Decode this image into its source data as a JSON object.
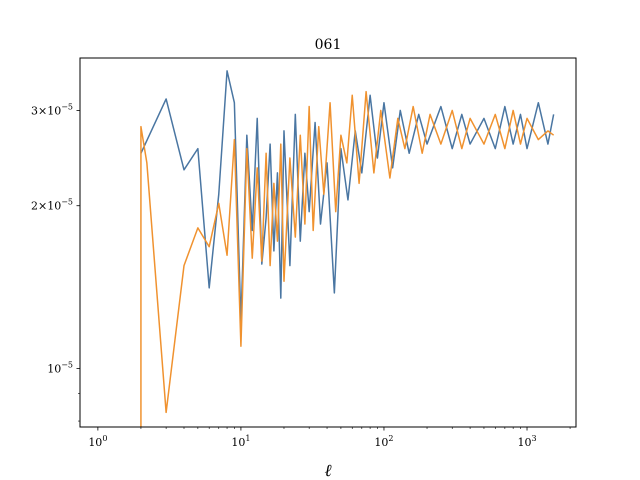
{
  "chart_data": {
    "type": "line",
    "title": "061",
    "xlabel": "ℓ",
    "ylabel": "",
    "x_scale": "log",
    "y_scale": "log",
    "xlim": [
      0.75,
      2200
    ],
    "ylim": [
      7.8e-06,
      3.75e-05
    ],
    "grid": false,
    "legend": "none",
    "x_tick_labels": [
      {
        "value": 1,
        "base": "10",
        "exp": "0"
      },
      {
        "value": 10,
        "base": "10",
        "exp": "1"
      },
      {
        "value": 100,
        "base": "10",
        "exp": "2"
      },
      {
        "value": 1000,
        "base": "10",
        "exp": "3"
      }
    ],
    "y_tick_labels": [
      {
        "value": 1e-05,
        "base": "10",
        "exp": "−5",
        "mult": ""
      },
      {
        "value": 2e-05,
        "base": "10",
        "exp": "−5",
        "mult": "2×"
      },
      {
        "value": 3e-05,
        "base": "10",
        "exp": "−5",
        "mult": "3×"
      }
    ],
    "series": [
      {
        "color": "#4a76a2",
        "x": [
          2,
          3,
          4,
          5,
          6,
          7,
          8,
          9,
          10,
          11,
          12,
          13,
          14,
          15,
          16,
          17,
          18,
          19,
          20,
          22,
          24,
          26,
          28,
          30,
          33,
          36,
          40,
          45,
          50,
          56,
          63,
          70,
          80,
          90,
          100,
          115,
          130,
          150,
          175,
          200,
          250,
          300,
          350,
          400,
          500,
          600,
          700,
          800,
          900,
          1000,
          1200,
          1400,
          1535
        ],
        "y": [
          2.5e-05,
          3.15e-05,
          2.33e-05,
          2.55e-05,
          1.41e-05,
          2.1e-05,
          3.55e-05,
          3.1e-05,
          1.22e-05,
          2.7e-05,
          1.8e-05,
          2.9e-05,
          1.56e-05,
          1.9e-05,
          2.6e-05,
          1.65e-05,
          2.3e-05,
          1.35e-05,
          2.75e-05,
          1.55e-05,
          2.95e-05,
          1.72e-05,
          2.5e-05,
          1.95e-05,
          2.85e-05,
          1.85e-05,
          2.4e-05,
          1.38e-05,
          2.55e-05,
          2.05e-05,
          2.75e-05,
          2.3e-05,
          3.2e-05,
          2.45e-05,
          3.1e-05,
          2.35e-05,
          3e-05,
          2.5e-05,
          2.95e-05,
          2.6e-05,
          3.05e-05,
          2.55e-05,
          2.95e-05,
          2.6e-05,
          2.9e-05,
          2.55e-05,
          3.05e-05,
          2.6e-05,
          2.95e-05,
          2.55e-05,
          3.1e-05,
          2.6e-05,
          2.95e-05
        ]
      },
      {
        "color": "#f0922f",
        "x": [
          2,
          2,
          2.2,
          3,
          4,
          5,
          6,
          7,
          8,
          9,
          10,
          11,
          12,
          13,
          14,
          15,
          16,
          17,
          18,
          19,
          20,
          22,
          24,
          26,
          28,
          30,
          32,
          35,
          38,
          42,
          46,
          50,
          55,
          60,
          67,
          75,
          85,
          95,
          110,
          125,
          140,
          160,
          185,
          210,
          250,
          300,
          350,
          400,
          500,
          600,
          700,
          800,
          900,
          1000,
          1200,
          1400,
          1535
        ],
        "y": [
          7.8e-06,
          2.8e-05,
          2.4e-05,
          8.3e-06,
          1.55e-05,
          1.82e-05,
          1.68e-05,
          2.02e-05,
          1.62e-05,
          2.65e-05,
          1.1e-05,
          2.55e-05,
          1.6e-05,
          2.35e-05,
          1.58e-05,
          2.5e-05,
          1.55e-05,
          2.2e-05,
          1.72e-05,
          2.6e-05,
          1.45e-05,
          2.45e-05,
          1.75e-05,
          2.7e-05,
          1.85e-05,
          3.05e-05,
          1.8e-05,
          2.8e-05,
          2.1e-05,
          3.1e-05,
          1.95e-05,
          2.7e-05,
          2.4e-05,
          3.2e-05,
          2.2e-05,
          3.25e-05,
          2.3e-05,
          3e-05,
          2.25e-05,
          2.9e-05,
          2.55e-05,
          3.05e-05,
          2.5e-05,
          2.95e-05,
          2.6e-05,
          3e-05,
          2.55e-05,
          2.9e-05,
          2.6e-05,
          2.95e-05,
          2.55e-05,
          3e-05,
          2.6e-05,
          2.9e-05,
          2.65e-05,
          2.75e-05,
          2.7e-05
        ]
      }
    ]
  }
}
